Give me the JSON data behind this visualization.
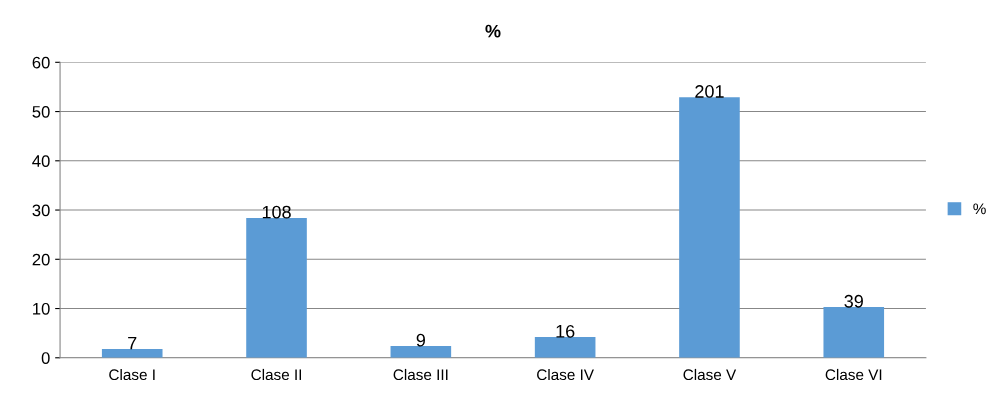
{
  "chart_data": {
    "type": "bar",
    "title": "%",
    "categories": [
      "Clase I",
      "Clase II",
      "Clase III",
      "Clase IV",
      "Clase V",
      "Clase VI"
    ],
    "series": [
      {
        "name": "%",
        "color": "#5b9bd5",
        "values": [
          1.8,
          28.4,
          2.4,
          4.2,
          52.9,
          10.3
        ]
      }
    ],
    "annotations": [
      {
        "text": "7",
        "x": "Clase I",
        "y": 1.8
      },
      {
        "text": "108",
        "x": "Clase II",
        "y": 28.4
      },
      {
        "text": "9",
        "x": "Clase III",
        "y": 2.4
      },
      {
        "text": "16",
        "x": "Clase IV",
        "y": 4.2
      },
      {
        "text": "201",
        "x": "Clase V",
        "y": 52.9
      },
      {
        "text": "39",
        "x": "Clase VI",
        "y": 10.3
      }
    ],
    "ylim": [
      0,
      60
    ],
    "yticks": [
      0,
      10,
      20,
      30,
      40,
      50,
      60
    ],
    "grid": "y",
    "legend": "right"
  }
}
